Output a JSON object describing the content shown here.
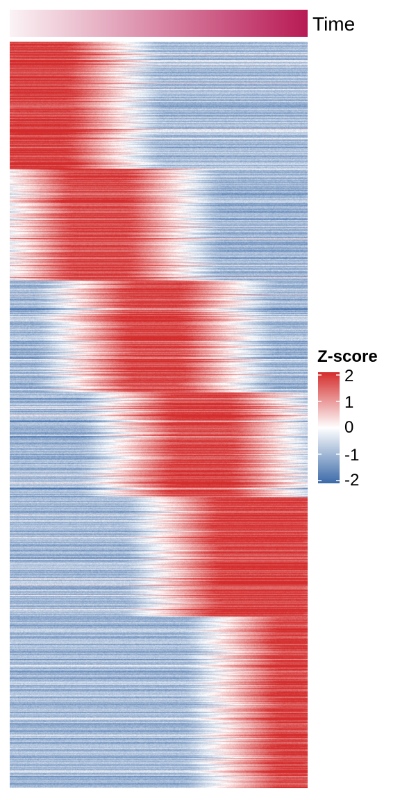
{
  "annotation": {
    "label": "Time",
    "color_low": "#fbf3f5",
    "color_high": "#b81a54"
  },
  "chart_data": {
    "type": "heatmap",
    "title": "",
    "xlabel": "",
    "ylabel": "",
    "color_scale": {
      "title": "Z-score",
      "min": -2,
      "max": 2,
      "colors": {
        "low": "#3b6aa8",
        "mid": "#ffffff",
        "high": "#d42c2c"
      },
      "ticks": [
        "2",
        "1",
        "0",
        "-1",
        "-2"
      ]
    },
    "columns": 100,
    "clusters": [
      {
        "peak_start": 0.0,
        "peak_end": 0.2,
        "row_share": 0.17
      },
      {
        "peak_start": 0.2,
        "peak_end": 0.4,
        "row_share": 0.15
      },
      {
        "peak_start": 0.4,
        "peak_end": 0.58,
        "row_share": 0.15
      },
      {
        "peak_start": 0.55,
        "peak_end": 0.75,
        "row_share": 0.14
      },
      {
        "peak_start": 0.7,
        "peak_end": 1.0,
        "row_share": 0.16
      },
      {
        "peak_start": 0.9,
        "peak_end": 1.0,
        "row_share": 0.23
      }
    ]
  }
}
